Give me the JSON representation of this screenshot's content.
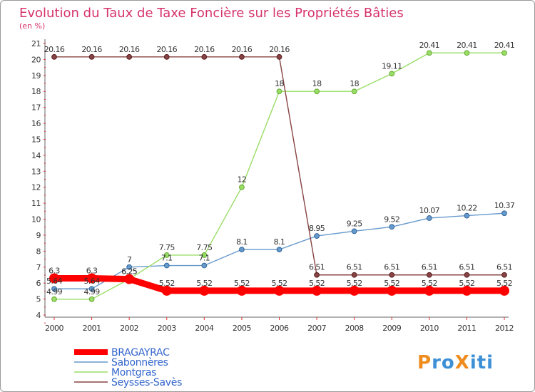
{
  "chart_data": {
    "type": "line",
    "title": "Evolution du Taux de Taxe Foncière sur les Propriétés Bâties",
    "subtitle": "(en %)",
    "categories": [
      "2000",
      "2001",
      "2002",
      "2003",
      "2004",
      "2005",
      "2006",
      "2007",
      "2008",
      "2009",
      "2010",
      "2011",
      "2012"
    ],
    "ylim": [
      4,
      21
    ],
    "yticks": [
      4,
      5,
      6,
      7,
      8,
      9,
      10,
      11,
      12,
      13,
      14,
      15,
      16,
      17,
      18,
      19,
      20,
      21
    ],
    "xlabel": "",
    "ylabel": "",
    "grid": false,
    "legend_position": "bottom-left",
    "series": [
      {
        "name": "BRAGAYRAC",
        "color": "#ff0000",
        "labels": [
          "6.3",
          "6.3",
          "6.25",
          "5.52",
          "5.52",
          "5.52",
          "5.52",
          "5.52",
          "5.52",
          "5.52",
          "5.52",
          "5.52",
          "5.52"
        ],
        "values": [
          6.3,
          6.3,
          6.25,
          5.52,
          5.52,
          5.52,
          5.52,
          5.52,
          5.52,
          5.52,
          5.52,
          5.52,
          5.52
        ]
      },
      {
        "name": "Sabonnères",
        "color": "#6699cc",
        "labels": [
          "5.64",
          "5.64",
          "7",
          "7.1",
          "7.1",
          "8.1",
          "8.1",
          "8.95",
          "9.25",
          "9.52",
          "10.07",
          "10.22",
          "10.37"
        ],
        "values": [
          5.64,
          5.64,
          7,
          7.1,
          7.1,
          8.1,
          8.1,
          8.95,
          9.25,
          9.52,
          10.07,
          10.22,
          10.37
        ]
      },
      {
        "name": "Montgras",
        "color": "#99dd66",
        "labels": [
          "4.99",
          "4.99",
          "6.25",
          "7.75",
          "7.75",
          "12",
          "18",
          "18",
          "18",
          "19.11",
          "20.41",
          "20.41",
          "20.41"
        ],
        "values": [
          4.99,
          4.99,
          6.25,
          7.75,
          7.75,
          12,
          18,
          18,
          18,
          19.11,
          20.41,
          20.41,
          20.41
        ]
      },
      {
        "name": "Seysses-Savès",
        "color": "#884444",
        "labels": [
          "20.16",
          "20.16",
          "20.16",
          "20.16",
          "20.16",
          "20.16",
          "20.16",
          "6.51",
          "6.51",
          "6.51",
          "6.51",
          "6.51",
          "6.51"
        ],
        "values": [
          20.16,
          20.16,
          20.16,
          20.16,
          20.16,
          20.16,
          20.16,
          6.51,
          6.51,
          6.51,
          6.51,
          6.51,
          6.51
        ]
      }
    ]
  },
  "logo": {
    "text": "ProXiti",
    "letters": [
      "P",
      "r",
      "o",
      "X",
      "i",
      "t",
      "i"
    ],
    "colors": [
      "#f08c1e",
      "#3d8fd6",
      "#3d8fd6",
      "#f08c1e",
      "#3d8fd6",
      "#3d8fd6",
      "#3d8fd6"
    ]
  }
}
